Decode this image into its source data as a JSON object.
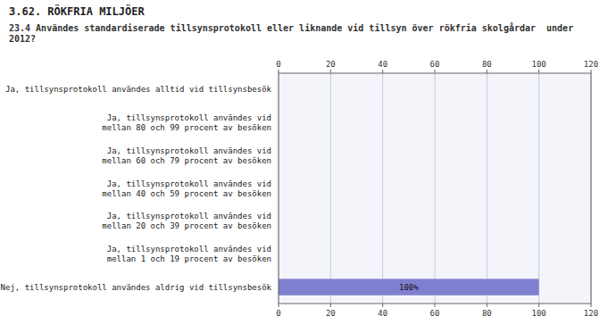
{
  "chart_data": {
    "type": "bar",
    "orientation": "horizontal",
    "title": "3.62. RÖKFRIA MILJÖER",
    "subtitle": "23.4 Användes standardiserade tillsynsprotokoll eller liknande vid tillsyn över rökfria skolgårdar  under\n2012?",
    "categories": [
      "Ja, tillsynsprotokoll användes alltid vid tillsynsbesök",
      "Ja, tillsynsprotokoll användes vid\nmellan 80 och 99 procent av besöken",
      "Ja, tillsynsprotokoll användes vid\nmellan 60 och 79 procent av besöken",
      "Ja, tillsynsprotokoll användes vid\nmellan 40 och 59 procent av besöken",
      "Ja, tillsynsprotokoll användes vid\nmellan 20 och 39 procent av besöken",
      "Ja, tillsynsprotokoll användes vid\nmellan 1 och 19 procent av besöken",
      "Nej, tillsynsprotokoll användes aldrig vid tillsynsbesök"
    ],
    "values": [
      0,
      0,
      0,
      0,
      0,
      0,
      100
    ],
    "data_labels": true,
    "value_labels": [
      null,
      null,
      null,
      null,
      null,
      null,
      "100%"
    ],
    "color": "#8080d0",
    "xlim": [
      0,
      120
    ],
    "xticks": [
      0,
      20,
      40,
      60,
      80,
      100,
      120
    ],
    "grid": true
  }
}
